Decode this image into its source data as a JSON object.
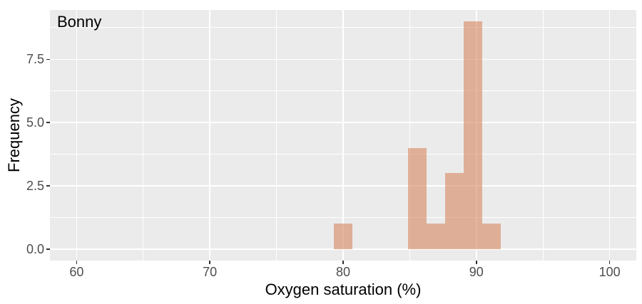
{
  "chart_data": {
    "type": "histogram",
    "annotation": "Bonny",
    "xlabel": "Oxygen saturation (%)",
    "ylabel": "Frequency",
    "xlim": [
      58,
      102
    ],
    "ylim": [
      -0.45,
      9.45
    ],
    "x_major_ticks": [
      {
        "value": 60,
        "label": "60"
      },
      {
        "value": 70,
        "label": "70"
      },
      {
        "value": 80,
        "label": "80"
      },
      {
        "value": 90,
        "label": "90"
      },
      {
        "value": 100,
        "label": "100"
      }
    ],
    "x_minor_gridlines": [
      65,
      75,
      85,
      95
    ],
    "y_major_ticks": [
      {
        "value": 0,
        "label": "0.0"
      },
      {
        "value": 2.5,
        "label": "2.5"
      },
      {
        "value": 5,
        "label": "5.0"
      },
      {
        "value": 7.5,
        "label": "7.5"
      }
    ],
    "y_minor_gridlines": [
      1.25,
      3.75,
      6.25,
      8.75
    ],
    "binwidth": 1.389,
    "bins": [
      {
        "center": 80.0,
        "count": 1
      },
      {
        "center": 85.56,
        "count": 4
      },
      {
        "center": 86.94,
        "count": 1
      },
      {
        "center": 88.33,
        "count": 3
      },
      {
        "center": 89.72,
        "count": 9
      },
      {
        "center": 91.11,
        "count": 1
      }
    ],
    "grid": "on",
    "legend": "none",
    "colors": {
      "bar_fill": "rgba(213,135,93,0.6)",
      "panel_bg": "#EBEBEB",
      "gridline": "#FFFFFF",
      "tick_mark": "#333333",
      "tick_label": "#4D4D4D",
      "axis_title": "#000000"
    }
  }
}
